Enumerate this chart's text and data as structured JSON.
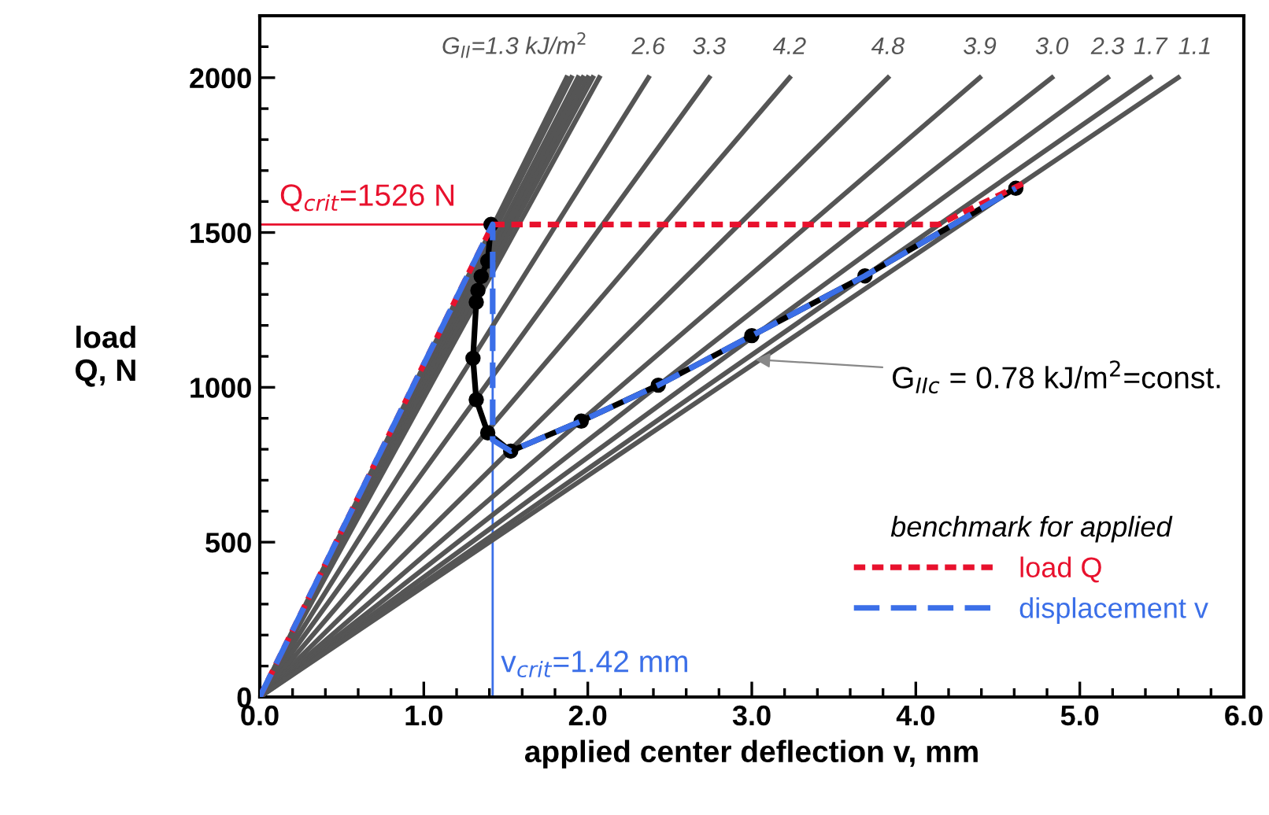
{
  "chart_data": {
    "type": "line",
    "xlabel": "applied center deflection v, mm",
    "ylabel": "load\nQ, N",
    "legend_title": "benchmark for applied",
    "legend": "bottom right",
    "xlim": [
      0,
      6
    ],
    "xticks": [
      {
        "value": 0,
        "label": "0.0"
      },
      {
        "value": 1,
        "label": "1.0"
      },
      {
        "value": 2,
        "label": "2.0"
      },
      {
        "value": 3,
        "label": "3.0"
      },
      {
        "value": 4,
        "label": "4.0"
      },
      {
        "value": 5,
        "label": "5.0"
      },
      {
        "value": 6,
        "label": "6.0"
      }
    ],
    "ylim": [
      0,
      2200
    ],
    "yticks": [
      0,
      500,
      1000,
      1500,
      2000
    ],
    "grid": false,
    "series": [
      {
        "color": "#555555",
        "x": [
          0,
          1.87
        ],
        "values": [
          0,
          2000
        ]
      },
      {
        "color": "#555555",
        "x": [
          0,
          1.9
        ],
        "values": [
          0,
          2000
        ]
      },
      {
        "color": "#555555",
        "x": [
          0,
          1.94
        ],
        "values": [
          0,
          2000
        ]
      },
      {
        "color": "#555555",
        "x": [
          0,
          1.97
        ],
        "values": [
          0,
          2000
        ]
      },
      {
        "color": "#555555",
        "x": [
          0,
          2.0
        ],
        "values": [
          0,
          2000
        ]
      },
      {
        "color": "#555555",
        "x": [
          0,
          2.03
        ],
        "values": [
          0,
          2000
        ]
      },
      {
        "color": "#555555",
        "x": [
          0,
          2.07
        ],
        "values": [
          0,
          2000
        ]
      },
      {
        "color": "#555555",
        "x": [
          0,
          2.37
        ],
        "values": [
          0,
          2000
        ]
      },
      {
        "color": "#555555",
        "x": [
          0,
          2.74
        ],
        "values": [
          0,
          2000
        ]
      },
      {
        "color": "#555555",
        "x": [
          0,
          3.23
        ],
        "values": [
          0,
          2000
        ]
      },
      {
        "color": "#555555",
        "x": [
          0,
          3.83
        ],
        "values": [
          0,
          2000
        ]
      },
      {
        "color": "#555555",
        "x": [
          0,
          4.39
        ],
        "values": [
          0,
          2000
        ]
      },
      {
        "color": "#555555",
        "x": [
          0,
          4.83
        ],
        "values": [
          0,
          2000
        ]
      },
      {
        "color": "#555555",
        "x": [
          0,
          5.17
        ],
        "values": [
          0,
          2000
        ]
      },
      {
        "color": "#555555",
        "x": [
          0,
          5.43
        ],
        "values": [
          0,
          2000
        ]
      },
      {
        "color": "#555555",
        "x": [
          0,
          5.6
        ],
        "values": [
          0,
          2000
        ]
      },
      {
        "color": "#000000",
        "marker": "circle",
        "x": [
          1.41,
          1.39,
          1.35,
          1.33,
          1.32,
          1.3,
          1.32,
          1.39,
          1.53,
          1.96,
          2.43,
          3.0,
          3.69,
          4.61
        ],
        "values": [
          1526,
          1408,
          1358,
          1313,
          1275,
          1094,
          960,
          853,
          794,
          891,
          1007,
          1167,
          1360,
          1643
        ]
      },
      {
        "name": "load Q",
        "color": "#e8112d",
        "line_style": "dashed",
        "x": [
          0,
          1.42,
          4.14,
          4.68
        ],
        "values": [
          0,
          1526,
          1526,
          1665
        ]
      },
      {
        "name": "displacement v",
        "color": "#3b6fe8",
        "line_style": "dashed",
        "x": [
          0,
          1.42,
          1.42,
          1.53,
          1.96,
          2.43,
          3.0,
          3.69,
          4.61
        ],
        "values": [
          0,
          1526,
          830,
          794,
          891,
          1007,
          1167,
          1360,
          1643
        ]
      }
    ],
    "ref_lines": [
      {
        "axis": "y",
        "value": 1526,
        "label": "Q$_{crit}$=1526 N",
        "color": "#e8112d"
      },
      {
        "axis": "x",
        "value": 1.42,
        "label": "v$_{crit}$=1.42 mm",
        "color": "#3b6fe8"
      }
    ],
    "annotations": [
      {
        "text": "G$_{II}$=1.3 kJ/m$^{2}$",
        "x": 2.0,
        "y": 2000
      },
      {
        "text": "2.6",
        "x": 2.37,
        "y": 2000
      },
      {
        "text": "3.3",
        "x": 2.74,
        "y": 2000
      },
      {
        "text": "4.2",
        "x": 3.23,
        "y": 2000
      },
      {
        "text": "4.8",
        "x": 3.83,
        "y": 2000
      },
      {
        "text": "3.9",
        "x": 4.39,
        "y": 2000
      },
      {
        "text": "3.0",
        "x": 4.83,
        "y": 2000
      },
      {
        "text": "2.3",
        "x": 5.17,
        "y": 2000
      },
      {
        "text": "1.7",
        "x": 5.43,
        "y": 2000
      },
      {
        "text": "1.1",
        "x": 5.6,
        "y": 2000
      },
      {
        "text": "G$_{IIc}$ = 0.78 kJ/m$^{2}$=const.",
        "x": 3.02,
        "y": 1090
      }
    ]
  }
}
